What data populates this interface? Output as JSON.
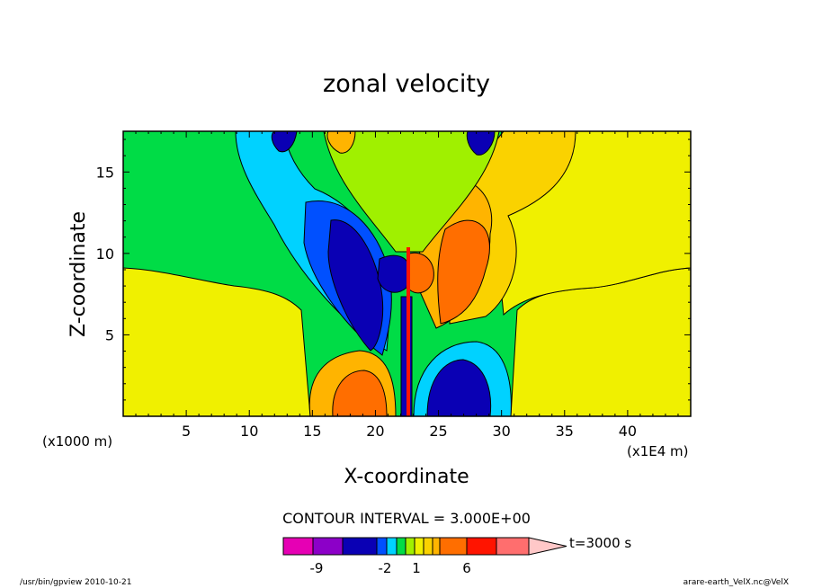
{
  "chart_data": {
    "type": "heatmap",
    "title": "zonal velocity",
    "xlabel": "X-coordinate",
    "ylabel": "Z-coordinate",
    "x_unit_note": "(x1E4 m)",
    "y_unit_note": "(x1000 m)",
    "xlim": [
      0,
      45
    ],
    "ylim": [
      0,
      17.5
    ],
    "x_ticks": [
      "5",
      "10",
      "15",
      "20",
      "25",
      "30",
      "35",
      "40"
    ],
    "y_ticks": [
      "5",
      "10",
      "15"
    ],
    "contour_interval_label": "CONTOUR INTERVAL = 3.000E+00",
    "colorbar": {
      "colors": [
        "#e600b4",
        "#8c00c8",
        "#0a00b4",
        "#0050ff",
        "#00d2ff",
        "#00dc46",
        "#a0f000",
        "#f0f000",
        "#fad200",
        "#ffb400",
        "#ff6e00",
        "#ff1400",
        "#ff6e6e",
        "#ffc8c8"
      ],
      "tick_labels": [
        "-9",
        "-2",
        "1",
        "6"
      ],
      "time_label": "t=3000 s"
    },
    "footer_left": "/usr/bin/gpview   2010-10-21",
    "footer_right": "arare-earth_VelX.nc@VelX"
  }
}
